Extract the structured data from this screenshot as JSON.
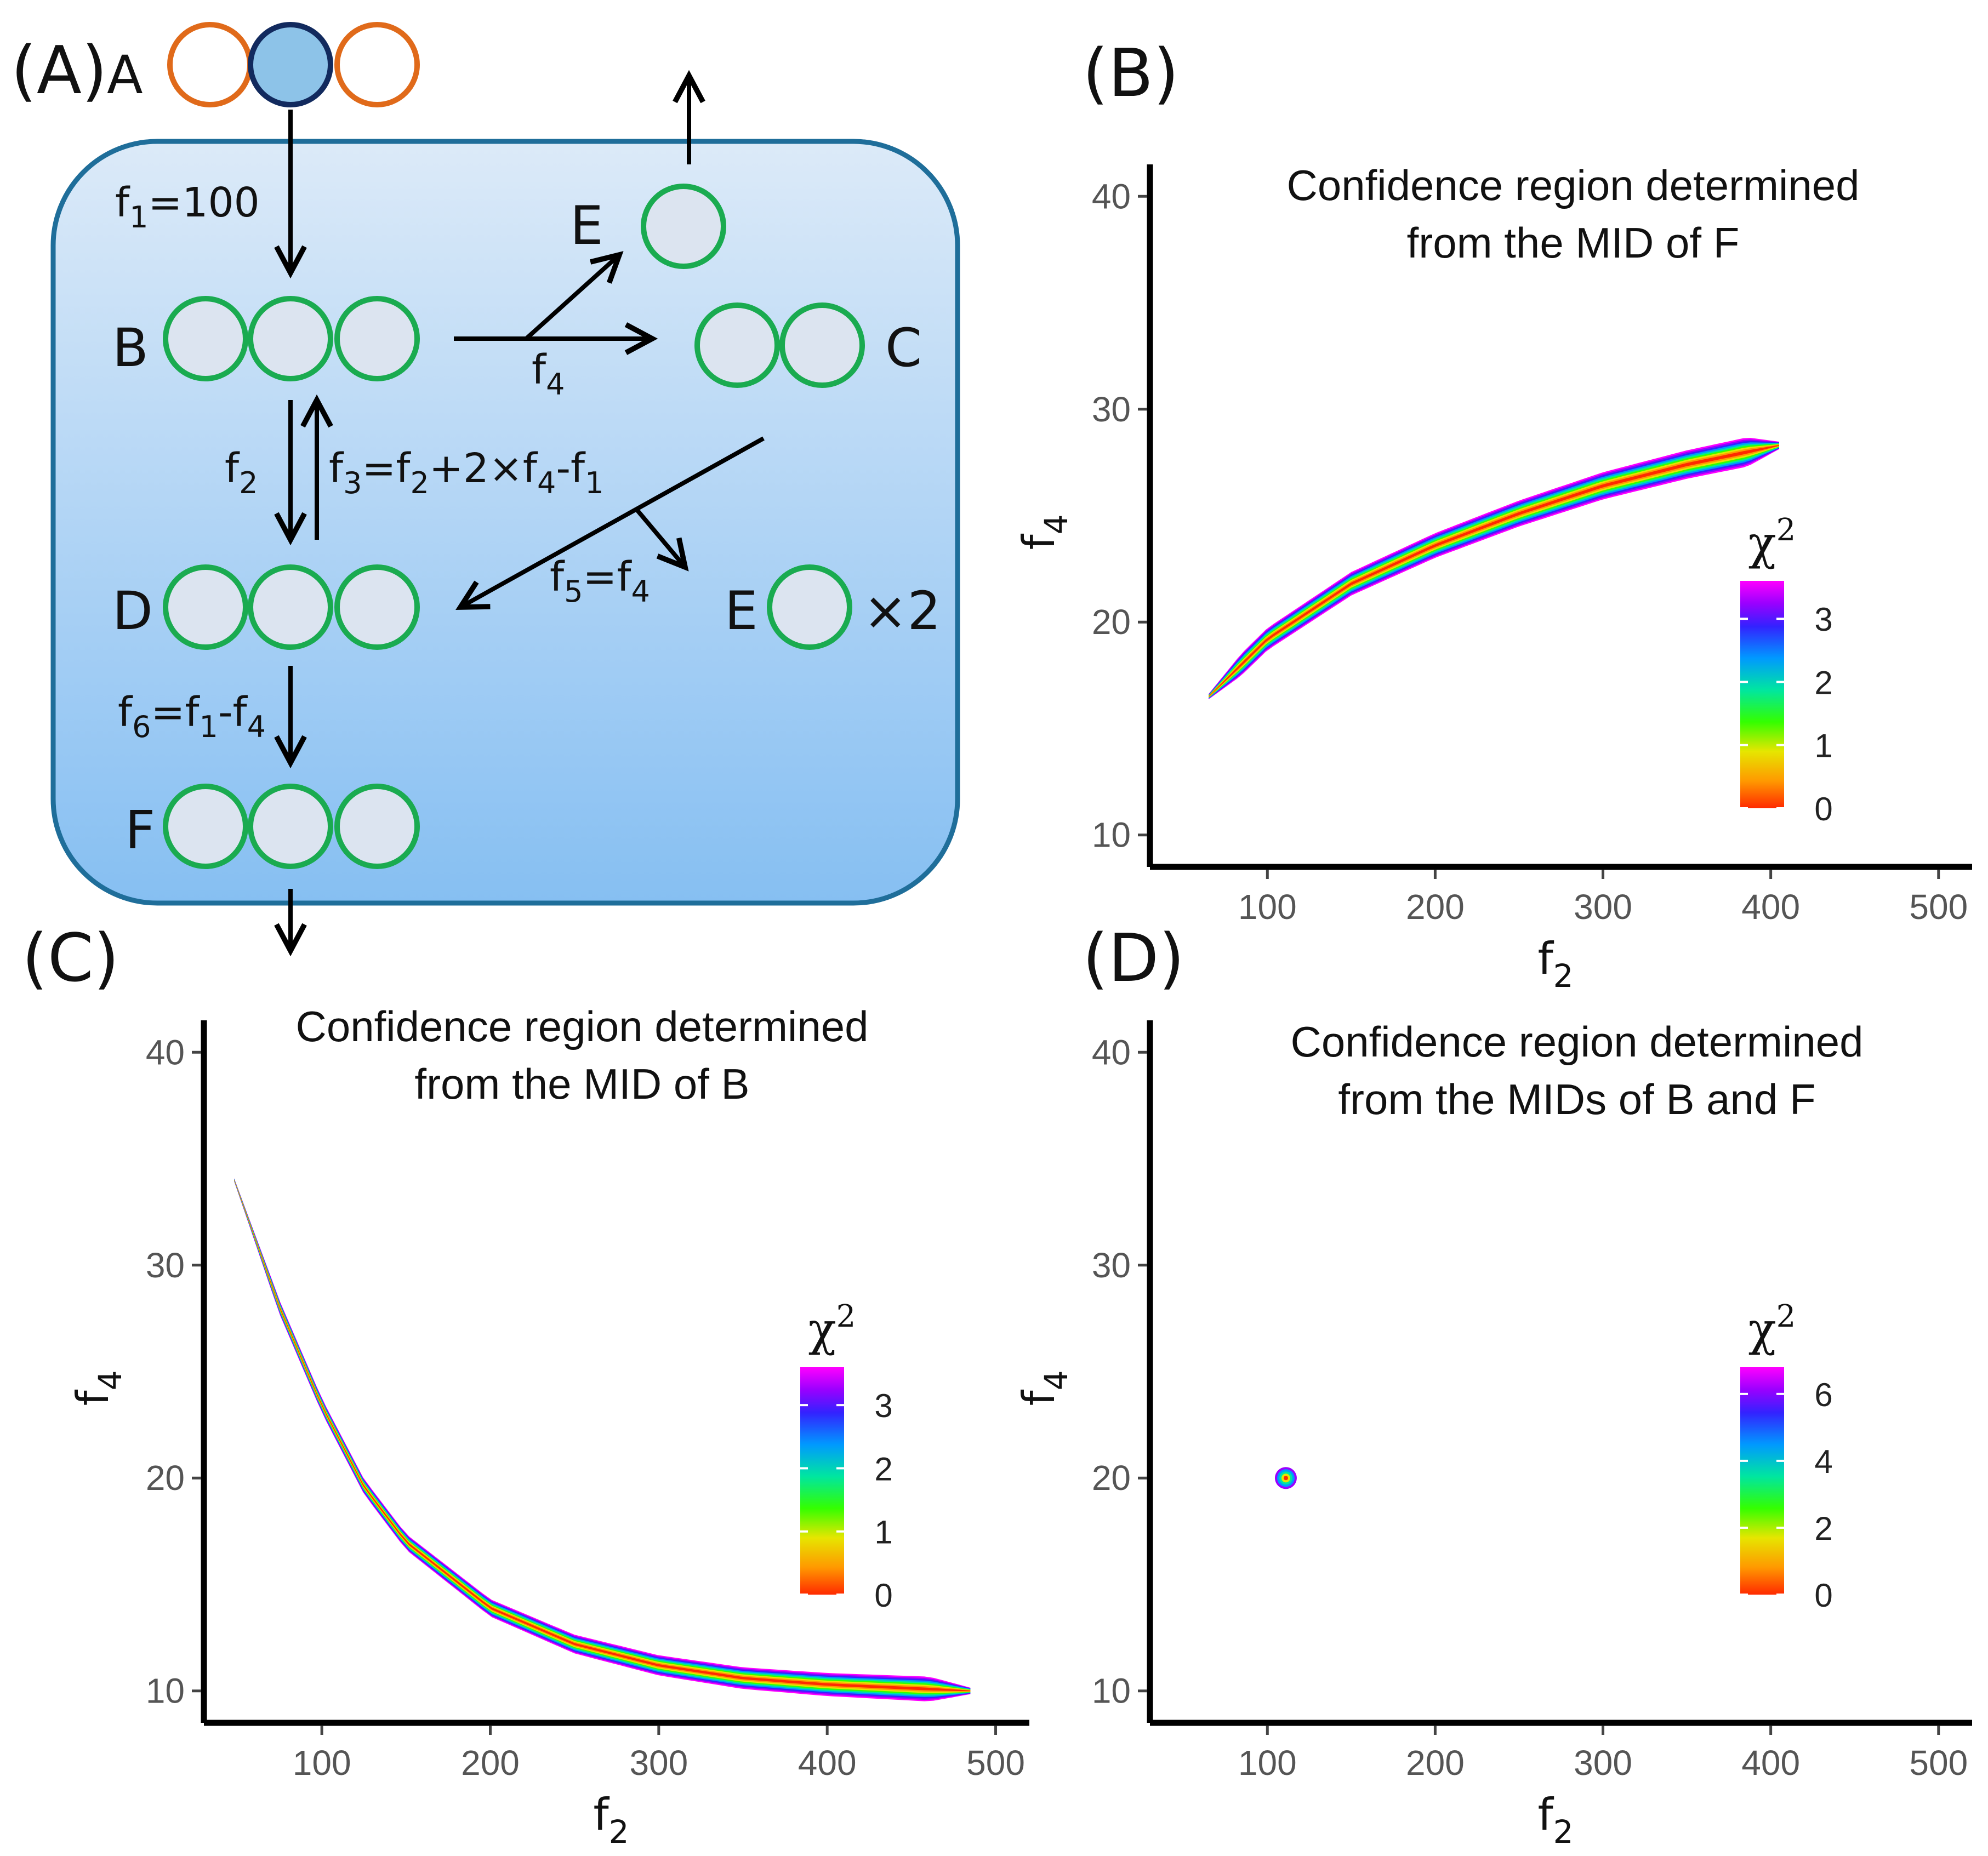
{
  "panels": {
    "a": {
      "label": "(A)",
      "nodes": {
        "A": "A",
        "B": "B",
        "C": "C",
        "D": "D",
        "E_top": "E",
        "E_right": "E",
        "F": "F"
      },
      "times_two": "×2",
      "fluxes": {
        "f1": {
          "base": "f",
          "sub": "1",
          "rest": "=100"
        },
        "f2": {
          "base": "f",
          "sub": "2"
        },
        "f4": {
          "base": "f",
          "sub": "4"
        },
        "f3": "f3=f2+2×f4-f1",
        "f5": "f5=f4",
        "f6": "f6=f1-f4"
      },
      "colors": {
        "cell_fill_top": "#dbe9f7",
        "cell_fill_bottom": "#87c0f2",
        "cell_border": "#1f6e9a",
        "atom_green": "#1aab50",
        "atom_orange": "#e06a1a",
        "atom_labeled": "#8dc3e8",
        "atom_labeled_border": "#122a5e"
      }
    }
  },
  "chart_data": [
    {
      "panel": "(B)",
      "type": "heatmap",
      "title_line1": "Confidence region determined",
      "title_line2": "from the MID of F",
      "xlabel": "f2",
      "ylabel": "f4",
      "xlim": [
        30,
        520
      ],
      "ylim": [
        8.5,
        41.5
      ],
      "xticks": [
        100,
        200,
        300,
        400,
        500
      ],
      "yticks": [
        10,
        20,
        30,
        40
      ],
      "region": {
        "shape": "increasing-band",
        "f2_range": [
          65,
          405
        ],
        "f4_range": [
          16.5,
          28.3
        ],
        "band_halfwidth": [
          0.5,
          0.7
        ],
        "center_points": [
          [
            65,
            16.5
          ],
          [
            100,
            19.2
          ],
          [
            150,
            21.8
          ],
          [
            200,
            23.6
          ],
          [
            250,
            25.1
          ],
          [
            300,
            26.4
          ],
          [
            350,
            27.4
          ],
          [
            405,
            28.3
          ]
        ]
      },
      "legend": {
        "title": "χ2",
        "ticks": [
          0,
          1,
          2,
          3
        ],
        "max": 3.6
      }
    },
    {
      "panel": "(C)",
      "type": "heatmap",
      "title_line1": "Confidence region determined",
      "title_line2": "from the MID of B",
      "xlabel": "f2",
      "ylabel": "f4",
      "xlim": [
        30,
        520
      ],
      "ylim": [
        8.5,
        41.5
      ],
      "xticks": [
        100,
        200,
        300,
        400,
        500
      ],
      "yticks": [
        10,
        20,
        30,
        40
      ],
      "region": {
        "shape": "decreasing-band",
        "f2_range": [
          48,
          485
        ],
        "f4_range": [
          10.0,
          34.6
        ],
        "band_halfwidth": [
          0.3,
          0.6
        ],
        "center_points": [
          [
            48,
            34.0
          ],
          [
            75,
            28.0
          ],
          [
            100,
            23.4
          ],
          [
            125,
            19.6
          ],
          [
            150,
            17.0
          ],
          [
            200,
            13.9
          ],
          [
            250,
            12.2
          ],
          [
            300,
            11.2
          ],
          [
            350,
            10.6
          ],
          [
            400,
            10.3
          ],
          [
            485,
            10.0
          ]
        ]
      },
      "legend": {
        "title": "χ2",
        "ticks": [
          0,
          1,
          2,
          3
        ],
        "max": 3.6
      }
    },
    {
      "panel": "(D)",
      "type": "heatmap",
      "title_line1": "Confidence region determined",
      "title_line2": "from the MIDs of B and F",
      "xlabel": "f2",
      "ylabel": "f4",
      "xlim": [
        30,
        520
      ],
      "ylim": [
        8.5,
        41.5
      ],
      "xticks": [
        100,
        200,
        300,
        400,
        500
      ],
      "yticks": [
        10,
        20,
        30,
        40
      ],
      "region": {
        "shape": "point",
        "center": [
          111,
          20
        ]
      },
      "legend": {
        "title": "χ2",
        "ticks": [
          0,
          2,
          4,
          6
        ],
        "max": 6.8
      }
    }
  ]
}
